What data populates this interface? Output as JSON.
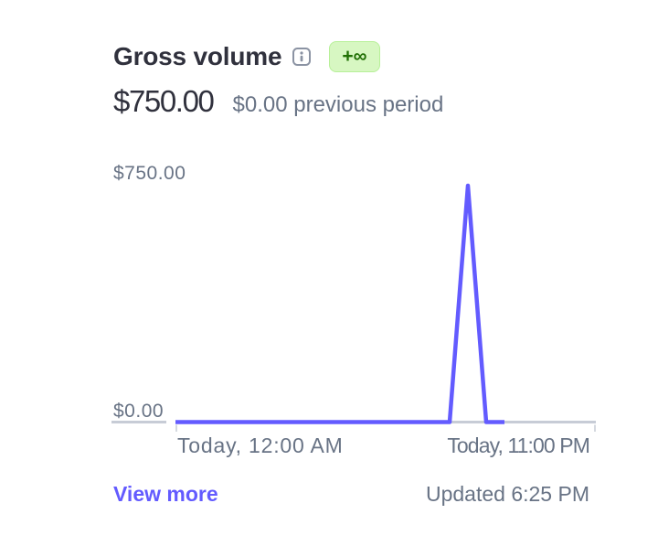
{
  "widget": {
    "title": "Gross volume",
    "badge": "+∞",
    "value": "$750.00",
    "previous": "$0.00 previous period",
    "view_more_label": "View more",
    "updated_text": "Updated 6:25 PM"
  },
  "icons": {
    "info": "info-icon"
  },
  "colors": {
    "accent": "#635bff",
    "text_dark": "#30313d",
    "text_gray": "#687385",
    "axis": "#c7ccd6",
    "badge_bg": "#d7f7c2",
    "badge_border": "#b7f098",
    "badge_text": "#217005"
  },
  "chart_data": {
    "type": "line",
    "title": "Gross volume",
    "legend": false,
    "grid": false,
    "y_axis": {
      "min": 0,
      "max": 750,
      "min_label": "$0.00",
      "max_label": "$750.00"
    },
    "x_axis": {
      "start_label": "Today, 12:00 AM",
      "end_label": "Today, 11:00 PM",
      "total_hours": 24
    },
    "series": [
      {
        "name": "Gross volume",
        "x_hours": [
          0,
          1,
          2,
          3,
          4,
          5,
          6,
          7,
          8,
          9,
          10,
          11,
          12,
          13,
          14,
          15,
          16,
          17,
          18
        ],
        "values": [
          0,
          0,
          0,
          0,
          0,
          0,
          0,
          0,
          0,
          0,
          0,
          0,
          0,
          0,
          0,
          0,
          750,
          0,
          0
        ]
      }
    ]
  }
}
